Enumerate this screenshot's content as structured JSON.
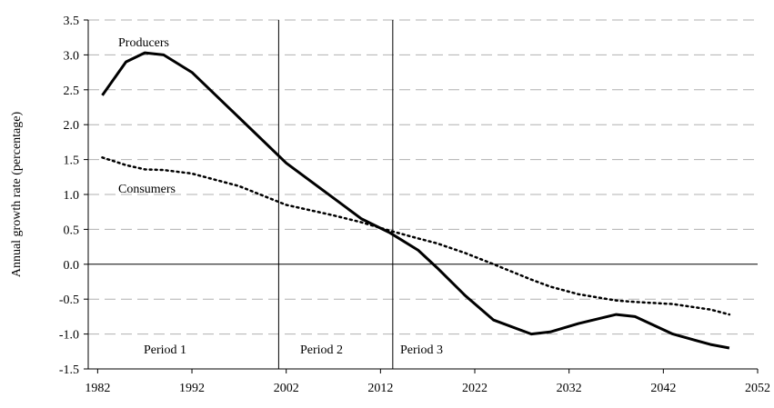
{
  "chart_data": {
    "type": "line",
    "y_label": "Annual growth rate (percentage)",
    "x": [
      1982.5,
      1985,
      1987,
      1989,
      1992,
      1997,
      2002,
      2007,
      2010,
      2013,
      2016,
      2018,
      2021,
      2024,
      2028,
      2030,
      2033,
      2037,
      2039,
      2043,
      2047,
      2049
    ],
    "series": [
      {
        "name": "Producers",
        "color": "#000000",
        "style": "solid",
        "values": [
          2.42,
          2.9,
          3.03,
          3.0,
          2.75,
          2.1,
          1.45,
          0.95,
          0.65,
          0.45,
          0.2,
          -0.05,
          -0.45,
          -0.8,
          -1.0,
          -0.97,
          -0.85,
          -0.72,
          -0.75,
          -1.0,
          -1.15,
          -1.2
        ]
      },
      {
        "name": "Consumers",
        "color": "#000000",
        "style": "dotted",
        "values": [
          1.53,
          1.42,
          1.36,
          1.35,
          1.3,
          1.12,
          0.85,
          0.7,
          0.6,
          0.48,
          0.37,
          0.3,
          0.16,
          0.0,
          -0.22,
          -0.32,
          -0.43,
          -0.52,
          -0.54,
          -0.57,
          -0.65,
          -0.72
        ]
      }
    ],
    "period_lines": [
      2001.2,
      2013.3
    ],
    "periods": [
      "Period 1",
      "Period 2",
      "Period 3"
    ],
    "xlim": [
      1981,
      2052
    ],
    "xticks": [
      1982,
      1992,
      2002,
      2012,
      2022,
      2032,
      2042,
      2052
    ],
    "ylim": [
      -1.5,
      3.5
    ],
    "yticks": [
      -1.5,
      {
        "value": -1,
        "label": "-1.0"
      },
      -0.5,
      {
        "value": 0,
        "label": "0.0"
      },
      0.5,
      {
        "value": 1,
        "label": "1.0"
      },
      1.5,
      {
        "value": 2,
        "label": "2.0"
      },
      2.5,
      {
        "value": 3,
        "label": "3.0"
      },
      3.5
    ],
    "grid": true
  }
}
